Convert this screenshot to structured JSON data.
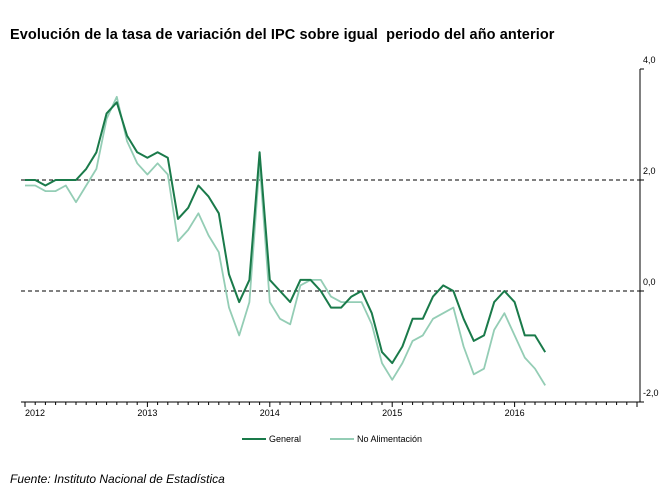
{
  "title": "Evolución de la tasa de variación del IPC sobre igual  periodo del año anterior",
  "source": "Fuente: Instituto Nacional de Estadística",
  "chart_data": {
    "type": "line",
    "title": "Evolución de la tasa de variación del IPC sobre igual  periodo del año anterior",
    "xlabel": "",
    "ylabel": "",
    "x_tick_labels": [
      "2012",
      "2013",
      "2014",
      "2015",
      "2016"
    ],
    "y_tick_labels": [
      "4,0",
      "2,0",
      "0,0",
      "-2,0"
    ],
    "y_ticks": [
      4,
      2,
      0,
      -2
    ],
    "ylim": [
      -2,
      4
    ],
    "y_axis_side": "right",
    "reference_lines": [
      2,
      0
    ],
    "legend_position": "bottom",
    "grid": false,
    "x_start": "2012-01",
    "series": [
      {
        "name": "General",
        "color": "#1a7a4a",
        "values": [
          2.0,
          2.0,
          1.9,
          2.0,
          2.0,
          2.0,
          2.2,
          2.5,
          3.2,
          3.4,
          2.8,
          2.5,
          2.4,
          2.5,
          2.4,
          1.3,
          1.5,
          1.9,
          1.7,
          1.4,
          0.3,
          -0.2,
          0.2,
          2.5,
          0.2,
          0.0,
          -0.2,
          0.2,
          0.2,
          0.0,
          -0.3,
          -0.3,
          -0.1,
          0.0,
          -0.4,
          -1.1,
          -1.3,
          -1.0,
          -0.5,
          -0.5,
          -0.1,
          0.1,
          0.0,
          -0.5,
          -0.9,
          -0.8,
          -0.2,
          0.0,
          -0.2,
          -0.8,
          -0.8,
          -1.1
        ]
      },
      {
        "name": "No Alimentación",
        "color": "#94cdb5",
        "values": [
          1.9,
          1.9,
          1.8,
          1.8,
          1.9,
          1.6,
          1.9,
          2.2,
          3.1,
          3.5,
          2.7,
          2.3,
          2.1,
          2.3,
          2.1,
          0.9,
          1.1,
          1.4,
          1.0,
          0.7,
          -0.3,
          -0.8,
          -0.2,
          2.3,
          -0.2,
          -0.5,
          -0.6,
          0.1,
          0.2,
          0.2,
          -0.1,
          -0.2,
          -0.2,
          -0.2,
          -0.6,
          -1.3,
          -1.6,
          -1.3,
          -0.9,
          -0.8,
          -0.5,
          -0.4,
          -0.3,
          -1.0,
          -1.5,
          -1.4,
          -0.7,
          -0.4,
          -0.8,
          -1.2,
          -1.4,
          -1.7
        ]
      }
    ]
  }
}
